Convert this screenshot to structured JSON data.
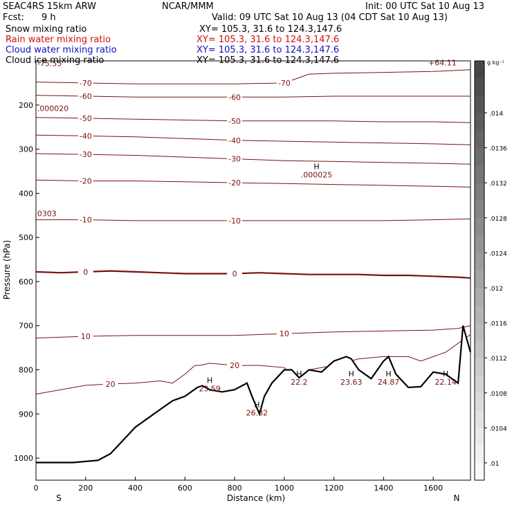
{
  "header": {
    "model": "SEAC4RS 15km ARW",
    "center": "NCAR/MMM",
    "init": "Init: 00 UTC Sat 10 Aug 13",
    "fcst_label": "Fcst:",
    "fcst_value": "9 h",
    "valid": "Valid: 09 UTC Sat 10 Aug 13 (04 CDT Sat 10 Aug 13)"
  },
  "fields": [
    {
      "name": "Snow mixing ratio",
      "xsect": "XY= 105.3, 31.6 to 124.3,147.6",
      "color": "#000000"
    },
    {
      "name": "Rain water mixing ratio",
      "xsect": "XY= 105.3, 31.6 to 124.3,147.6",
      "color": "#d01010"
    },
    {
      "name": "Cloud water mixing ratio",
      "xsect": "XY= 105.3, 31.6 to 124.3,147.6",
      "color": "#1010c0"
    },
    {
      "name": "Cloud ice mixing ratio",
      "xsect": "XY= 105.3, 31.6 to 124.3,147.6",
      "color": "#000000"
    }
  ],
  "chart_data": {
    "type": "line",
    "xlabel": "Distance (km)",
    "ylabel": "Pressure (hPa)",
    "xlim": [
      0,
      1750
    ],
    "ylim": [
      1050,
      100
    ],
    "x_ticks": [
      0,
      200,
      400,
      600,
      800,
      1000,
      1200,
      1400,
      1600
    ],
    "y_ticks": [
      200,
      300,
      400,
      500,
      600,
      700,
      800,
      900,
      1000
    ],
    "x_end_labels": {
      "left": "S",
      "right": "N"
    },
    "temperature_contours": [
      {
        "level": 20,
        "x": [
          0,
          100,
          200,
          300,
          400,
          500,
          550,
          600,
          640,
          660,
          700,
          800,
          900,
          1000,
          1040,
          1100,
          1200,
          1300,
          1400,
          1500,
          1550,
          1600,
          1650,
          1700,
          1750
        ],
        "p": [
          855,
          845,
          835,
          832,
          830,
          825,
          830,
          810,
          790,
          790,
          785,
          790,
          790,
          795,
          825,
          800,
          790,
          775,
          770,
          770,
          780,
          770,
          760,
          740,
          720
        ]
      },
      {
        "level": 10,
        "x": [
          0,
          200,
          400,
          600,
          800,
          1000,
          1200,
          1400,
          1600,
          1700,
          1750
        ],
        "p": [
          728,
          724,
          722,
          722,
          722,
          718,
          714,
          712,
          710,
          706,
          700
        ]
      },
      {
        "level": 0,
        "x": [
          0,
          100,
          200,
          300,
          400,
          500,
          600,
          700,
          800,
          900,
          1000,
          1100,
          1200,
          1300,
          1400,
          1500,
          1600,
          1700,
          1750
        ],
        "p": [
          578,
          580,
          578,
          576,
          578,
          580,
          582,
          582,
          582,
          580,
          582,
          584,
          584,
          584,
          586,
          586,
          588,
          590,
          592
        ]
      },
      {
        "level": -10,
        "x": [
          0,
          200,
          400,
          600,
          800,
          1000,
          1200,
          1400,
          1600,
          1750
        ],
        "p": [
          460,
          460,
          462,
          462,
          462,
          462,
          462,
          462,
          460,
          458
        ]
      },
      {
        "level": -20,
        "x": [
          0,
          200,
          400,
          600,
          800,
          1000,
          1200,
          1400,
          1600,
          1750
        ],
        "p": [
          370,
          372,
          372,
          374,
          376,
          378,
          380,
          382,
          384,
          386
        ]
      },
      {
        "level": -30,
        "x": [
          0,
          200,
          400,
          600,
          800,
          1000,
          1200,
          1400,
          1600,
          1750
        ],
        "p": [
          310,
          312,
          314,
          318,
          322,
          326,
          328,
          330,
          332,
          334
        ]
      },
      {
        "level": -40,
        "x": [
          0,
          200,
          400,
          600,
          800,
          1000,
          1200,
          1400,
          1600,
          1750
        ],
        "p": [
          268,
          270,
          272,
          276,
          280,
          282,
          284,
          286,
          288,
          290
        ]
      },
      {
        "level": -50,
        "x": [
          0,
          200,
          400,
          600,
          800,
          1000,
          1200,
          1400,
          1600,
          1750
        ],
        "p": [
          228,
          230,
          232,
          234,
          236,
          236,
          236,
          238,
          238,
          240
        ]
      },
      {
        "level": -60,
        "x": [
          0,
          200,
          400,
          600,
          800,
          1000,
          1200,
          1400,
          1600,
          1750
        ],
        "p": [
          178,
          180,
          182,
          182,
          182,
          182,
          180,
          180,
          180,
          180
        ]
      },
      {
        "level": -70,
        "x": [
          0,
          200,
          400,
          600,
          800,
          1000,
          1100,
          1200,
          1400,
          1600,
          1750
        ],
        "p": [
          148,
          150,
          152,
          152,
          152,
          150,
          130,
          128,
          126,
          124,
          120
        ]
      }
    ],
    "terrain": {
      "x": [
        0,
        150,
        250,
        300,
        350,
        400,
        450,
        500,
        550,
        600,
        650,
        670,
        700,
        750,
        800,
        850,
        870,
        900,
        920,
        950,
        1000,
        1030,
        1060,
        1100,
        1150,
        1200,
        1250,
        1270,
        1300,
        1350,
        1400,
        1420,
        1450,
        1500,
        1550,
        1600,
        1650,
        1700,
        1720,
        1750
      ],
      "p": [
        1010,
        1010,
        1005,
        990,
        960,
        930,
        910,
        890,
        870,
        860,
        840,
        836,
        845,
        850,
        845,
        830,
        860,
        900,
        860,
        830,
        800,
        800,
        818,
        800,
        805,
        780,
        770,
        775,
        800,
        820,
        780,
        770,
        810,
        840,
        838,
        805,
        810,
        830,
        700,
        760
      ]
    },
    "maxima": [
      {
        "x": 700,
        "p": 830,
        "value": "23.59"
      },
      {
        "x": 890,
        "p": 885,
        "value": "26.32"
      },
      {
        "x": 1060,
        "p": 815,
        "value": "22.2"
      },
      {
        "x": 1270,
        "p": 815,
        "value": "23.63"
      },
      {
        "x": 1420,
        "p": 815,
        "value": "24.87"
      },
      {
        "x": 1650,
        "p": 815,
        "value": "22.14"
      },
      {
        "x": 1130,
        "p": 345,
        "value": ".000025"
      }
    ],
    "extra_labels": [
      {
        "x": 5,
        "p": 112,
        "value": "-75.55"
      },
      {
        "x": 1580,
        "p": 110,
        "value": "+64.11"
      },
      {
        "x": 5,
        "p": 214,
        "value": ".000020"
      },
      {
        "x": 5,
        "p": 452,
        "value": "0303"
      }
    ],
    "colorbar": {
      "unit": "g kg⁻¹",
      "ticks": [
        ".014",
        ".0136",
        ".0132",
        ".0128",
        ".0124",
        ".012",
        ".0116",
        ".0112",
        ".0108",
        ".0104",
        ".01"
      ]
    }
  }
}
